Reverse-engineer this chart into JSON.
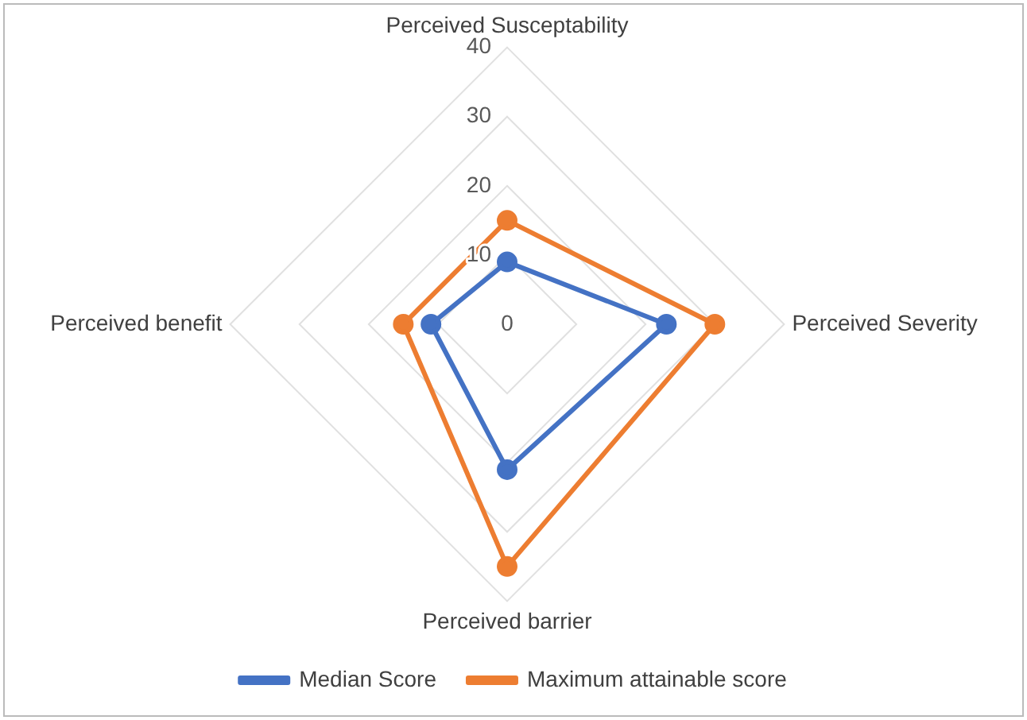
{
  "chart_data": {
    "type": "radar",
    "categories": [
      "Perceived Susceptability",
      "Perceived Severity",
      "Perceived barrier",
      "Perceived benefit"
    ],
    "series": [
      {
        "name": "Median Score",
        "color": "#4472c4",
        "values": [
          9,
          23,
          21,
          11
        ]
      },
      {
        "name": "Maximum attainable score",
        "color": "#ed7d31",
        "values": [
          15,
          30,
          35,
          15
        ]
      }
    ],
    "ylim": [
      0,
      40
    ],
    "yticks": [
      0,
      10,
      20,
      30,
      40
    ],
    "grid": true,
    "legend": "bottom",
    "marker": "circle",
    "line_style": "solid"
  }
}
